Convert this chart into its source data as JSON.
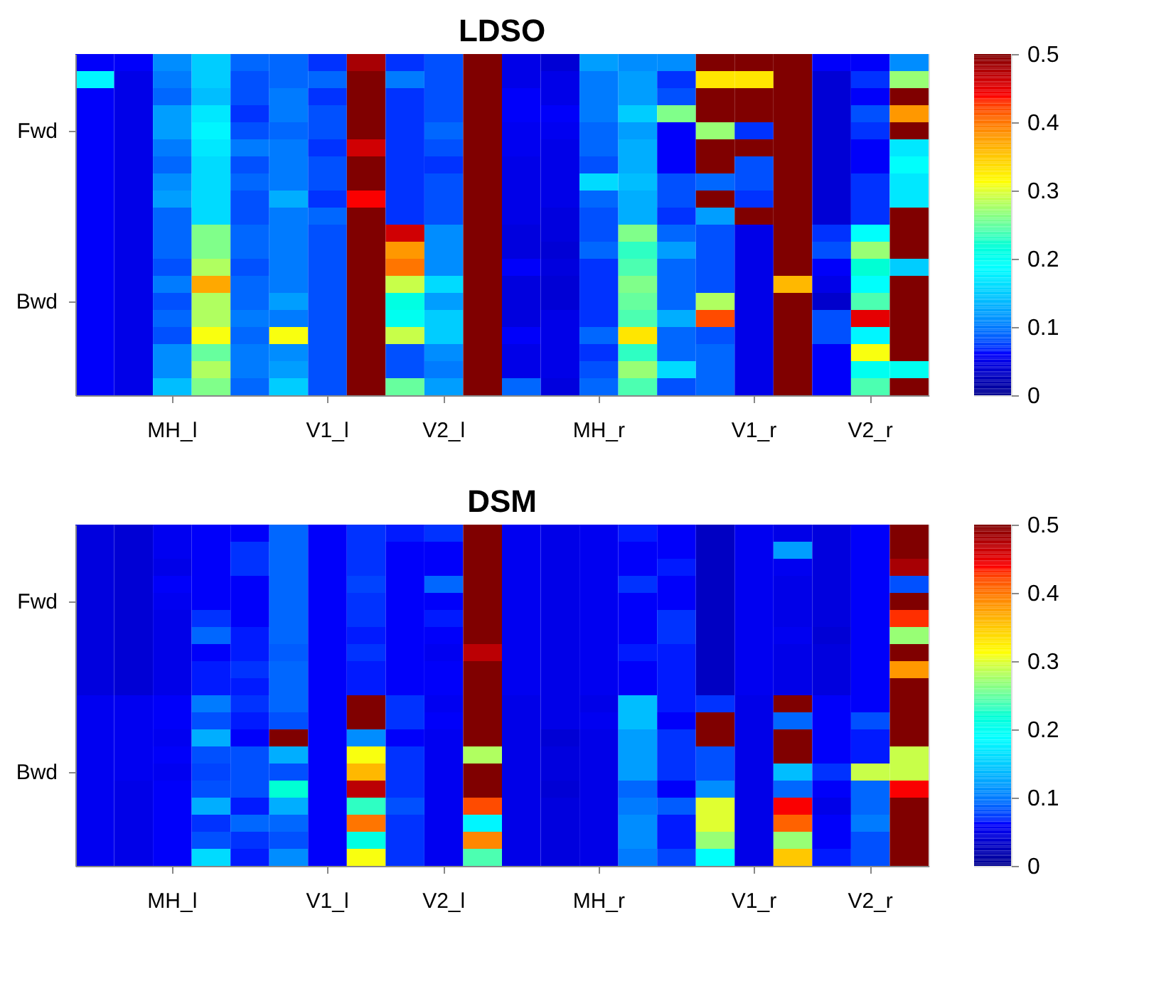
{
  "chart_data": [
    {
      "type": "heatmap",
      "title": "LDSO",
      "categories": [
        null,
        null,
        "MH_l",
        null,
        null,
        null,
        "V1_l",
        null,
        null,
        "V2_l",
        null,
        null,
        null,
        "MH_r",
        null,
        null,
        null,
        "V1_r",
        null,
        null,
        "V2_r",
        null
      ],
      "y_categories": [
        null,
        null,
        null,
        null,
        "Fwd",
        null,
        null,
        null,
        null,
        null,
        null,
        null,
        null,
        null,
        "Bwd",
        null,
        null,
        null,
        null,
        null
      ],
      "clim": [
        0,
        0.5
      ],
      "cticks": [
        0,
        0.1,
        0.2,
        0.3,
        0.4,
        0.5
      ],
      "cells": [
        [
          0.06,
          0.06,
          0.11,
          0.15,
          0.09,
          0.09,
          0.07,
          0.48,
          0.07,
          0.08,
          0.5,
          0.05,
          0.04,
          0.12,
          0.11,
          0.11,
          0.5,
          0.5,
          0.5,
          0.06,
          0.06,
          0.11
        ],
        [
          0.18,
          0.05,
          0.1,
          0.15,
          0.08,
          0.09,
          0.09,
          0.5,
          0.1,
          0.08,
          0.5,
          0.05,
          0.05,
          0.1,
          0.12,
          0.07,
          0.33,
          0.33,
          0.5,
          0.04,
          0.07,
          0.27
        ],
        [
          0.06,
          0.05,
          0.09,
          0.14,
          0.08,
          0.1,
          0.07,
          0.5,
          0.07,
          0.08,
          0.5,
          0.06,
          0.05,
          0.1,
          0.12,
          0.08,
          0.5,
          0.5,
          0.5,
          0.04,
          0.06,
          0.5
        ],
        [
          0.06,
          0.05,
          0.12,
          0.17,
          0.07,
          0.1,
          0.08,
          0.5,
          0.07,
          0.08,
          0.5,
          0.06,
          0.06,
          0.1,
          0.15,
          0.26,
          0.5,
          0.5,
          0.5,
          0.04,
          0.08,
          0.38
        ],
        [
          0.06,
          0.05,
          0.12,
          0.18,
          0.08,
          0.09,
          0.08,
          0.5,
          0.07,
          0.09,
          0.5,
          0.055,
          0.055,
          0.09,
          0.12,
          0.06,
          0.27,
          0.07,
          0.5,
          0.04,
          0.07,
          0.5
        ],
        [
          0.06,
          0.05,
          0.1,
          0.17,
          0.1,
          0.1,
          0.07,
          0.46,
          0.07,
          0.08,
          0.5,
          0.055,
          0.05,
          0.09,
          0.13,
          0.06,
          0.5,
          0.5,
          0.5,
          0.04,
          0.06,
          0.17
        ],
        [
          0.06,
          0.05,
          0.09,
          0.16,
          0.08,
          0.1,
          0.08,
          0.5,
          0.07,
          0.07,
          0.5,
          0.05,
          0.05,
          0.08,
          0.13,
          0.06,
          0.5,
          0.08,
          0.5,
          0.04,
          0.06,
          0.19
        ],
        [
          0.06,
          0.05,
          0.11,
          0.16,
          0.09,
          0.1,
          0.08,
          0.5,
          0.07,
          0.08,
          0.5,
          0.05,
          0.05,
          0.16,
          0.14,
          0.08,
          0.09,
          0.08,
          0.5,
          0.04,
          0.07,
          0.17
        ],
        [
          0.06,
          0.05,
          0.12,
          0.16,
          0.08,
          0.13,
          0.07,
          0.44,
          0.07,
          0.08,
          0.5,
          0.05,
          0.05,
          0.09,
          0.13,
          0.08,
          0.5,
          0.07,
          0.5,
          0.04,
          0.07,
          0.17
        ],
        [
          0.06,
          0.05,
          0.09,
          0.16,
          0.08,
          0.1,
          0.09,
          0.5,
          0.07,
          0.08,
          0.5,
          0.05,
          0.045,
          0.08,
          0.13,
          0.07,
          0.12,
          0.5,
          0.5,
          0.04,
          0.07,
          0.5
        ],
        [
          0.06,
          0.05,
          0.09,
          0.26,
          0.09,
          0.1,
          0.08,
          0.5,
          0.46,
          0.11,
          0.5,
          0.045,
          0.045,
          0.08,
          0.26,
          0.09,
          0.08,
          0.05,
          0.5,
          0.07,
          0.19,
          0.5
        ],
        [
          0.06,
          0.05,
          0.09,
          0.26,
          0.09,
          0.1,
          0.08,
          0.5,
          0.38,
          0.11,
          0.5,
          0.045,
          0.04,
          0.09,
          0.23,
          0.12,
          0.08,
          0.05,
          0.5,
          0.08,
          0.27,
          0.5
        ],
        [
          0.06,
          0.05,
          0.08,
          0.28,
          0.08,
          0.1,
          0.08,
          0.5,
          0.4,
          0.11,
          0.5,
          0.06,
          0.045,
          0.07,
          0.24,
          0.09,
          0.08,
          0.05,
          0.5,
          0.06,
          0.22,
          0.15
        ],
        [
          0.06,
          0.05,
          0.1,
          0.37,
          0.09,
          0.1,
          0.08,
          0.5,
          0.29,
          0.16,
          0.5,
          0.045,
          0.04,
          0.07,
          0.26,
          0.09,
          0.08,
          0.05,
          0.36,
          0.05,
          0.19,
          0.5
        ],
        [
          0.06,
          0.05,
          0.08,
          0.28,
          0.09,
          0.12,
          0.08,
          0.5,
          0.21,
          0.12,
          0.5,
          0.045,
          0.04,
          0.07,
          0.25,
          0.09,
          0.28,
          0.05,
          0.5,
          0.035,
          0.24,
          0.5
        ],
        [
          0.06,
          0.05,
          0.09,
          0.28,
          0.1,
          0.1,
          0.08,
          0.5,
          0.2,
          0.15,
          0.5,
          0.045,
          0.05,
          0.07,
          0.24,
          0.13,
          0.42,
          0.05,
          0.5,
          0.08,
          0.45,
          0.5
        ],
        [
          0.06,
          0.05,
          0.08,
          0.31,
          0.09,
          0.31,
          0.08,
          0.5,
          0.29,
          0.15,
          0.5,
          0.06,
          0.05,
          0.09,
          0.33,
          0.09,
          0.08,
          0.05,
          0.5,
          0.08,
          0.18,
          0.5
        ],
        [
          0.06,
          0.05,
          0.11,
          0.25,
          0.1,
          0.11,
          0.08,
          0.5,
          0.08,
          0.11,
          0.5,
          0.05,
          0.05,
          0.07,
          0.23,
          0.09,
          0.09,
          0.05,
          0.5,
          0.06,
          0.31,
          0.5
        ],
        [
          0.06,
          0.05,
          0.11,
          0.28,
          0.1,
          0.12,
          0.08,
          0.5,
          0.08,
          0.1,
          0.5,
          0.05,
          0.05,
          0.08,
          0.27,
          0.16,
          0.09,
          0.05,
          0.5,
          0.06,
          0.2,
          0.2
        ],
        [
          0.06,
          0.05,
          0.14,
          0.26,
          0.09,
          0.15,
          0.08,
          0.5,
          0.25,
          0.12,
          0.5,
          0.09,
          0.045,
          0.09,
          0.24,
          0.08,
          0.09,
          0.05,
          0.5,
          0.06,
          0.24,
          0.5
        ]
      ]
    },
    {
      "type": "heatmap",
      "title": "DSM",
      "categories": [
        null,
        null,
        "MH_l",
        null,
        null,
        null,
        "V1_l",
        null,
        null,
        "V2_l",
        null,
        null,
        null,
        "MH_r",
        null,
        null,
        null,
        "V1_r",
        null,
        null,
        "V2_r",
        null
      ],
      "y_categories": [
        null,
        null,
        null,
        null,
        "Fwd",
        null,
        null,
        null,
        null,
        null,
        null,
        null,
        null,
        null,
        "Bwd",
        null,
        null,
        null,
        null,
        null
      ],
      "clim": [
        0,
        0.5
      ],
      "cticks": [
        0,
        0.1,
        0.2,
        0.3,
        0.4,
        0.5
      ],
      "cells": [
        [
          0.045,
          0.04,
          0.055,
          0.06,
          0.06,
          0.09,
          0.06,
          0.07,
          0.065,
          0.07,
          0.5,
          0.055,
          0.05,
          0.055,
          0.065,
          0.06,
          0.03,
          0.055,
          0.05,
          0.045,
          0.06,
          0.5
        ],
        [
          0.045,
          0.04,
          0.055,
          0.06,
          0.07,
          0.09,
          0.06,
          0.07,
          0.06,
          0.06,
          0.5,
          0.055,
          0.05,
          0.055,
          0.06,
          0.06,
          0.03,
          0.055,
          0.12,
          0.045,
          0.06,
          0.5
        ],
        [
          0.045,
          0.04,
          0.05,
          0.06,
          0.07,
          0.09,
          0.06,
          0.07,
          0.06,
          0.06,
          0.5,
          0.055,
          0.05,
          0.055,
          0.06,
          0.065,
          0.03,
          0.055,
          0.055,
          0.045,
          0.06,
          0.48
        ],
        [
          0.045,
          0.04,
          0.06,
          0.06,
          0.06,
          0.09,
          0.06,
          0.075,
          0.06,
          0.09,
          0.5,
          0.055,
          0.05,
          0.055,
          0.07,
          0.06,
          0.03,
          0.055,
          0.05,
          0.045,
          0.06,
          0.08
        ],
        [
          0.045,
          0.04,
          0.055,
          0.06,
          0.06,
          0.09,
          0.06,
          0.07,
          0.06,
          0.06,
          0.5,
          0.055,
          0.05,
          0.055,
          0.06,
          0.06,
          0.03,
          0.055,
          0.05,
          0.045,
          0.06,
          0.5
        ],
        [
          0.045,
          0.04,
          0.05,
          0.07,
          0.06,
          0.09,
          0.06,
          0.07,
          0.06,
          0.065,
          0.5,
          0.055,
          0.05,
          0.055,
          0.06,
          0.07,
          0.03,
          0.055,
          0.05,
          0.045,
          0.06,
          0.43
        ],
        [
          0.045,
          0.04,
          0.05,
          0.09,
          0.065,
          0.09,
          0.06,
          0.065,
          0.06,
          0.06,
          0.5,
          0.055,
          0.05,
          0.055,
          0.06,
          0.07,
          0.03,
          0.055,
          0.055,
          0.04,
          0.06,
          0.27
        ],
        [
          0.045,
          0.04,
          0.05,
          0.06,
          0.065,
          0.085,
          0.06,
          0.07,
          0.06,
          0.055,
          0.47,
          0.055,
          0.05,
          0.055,
          0.065,
          0.065,
          0.03,
          0.055,
          0.05,
          0.045,
          0.06,
          0.5
        ],
        [
          0.045,
          0.04,
          0.05,
          0.065,
          0.07,
          0.09,
          0.06,
          0.065,
          0.06,
          0.06,
          0.5,
          0.055,
          0.05,
          0.055,
          0.06,
          0.065,
          0.03,
          0.055,
          0.05,
          0.045,
          0.06,
          0.38
        ],
        [
          0.045,
          0.04,
          0.05,
          0.065,
          0.065,
          0.09,
          0.06,
          0.065,
          0.06,
          0.06,
          0.5,
          0.055,
          0.05,
          0.055,
          0.06,
          0.065,
          0.03,
          0.055,
          0.05,
          0.045,
          0.06,
          0.5
        ],
        [
          0.055,
          0.055,
          0.06,
          0.1,
          0.07,
          0.09,
          0.06,
          0.5,
          0.07,
          0.055,
          0.5,
          0.05,
          0.05,
          0.05,
          0.14,
          0.065,
          0.07,
          0.05,
          0.5,
          0.06,
          0.06,
          0.5
        ],
        [
          0.055,
          0.055,
          0.06,
          0.08,
          0.065,
          0.08,
          0.06,
          0.5,
          0.07,
          0.06,
          0.5,
          0.05,
          0.05,
          0.055,
          0.14,
          0.06,
          0.5,
          0.05,
          0.09,
          0.06,
          0.08,
          0.5
        ],
        [
          0.055,
          0.055,
          0.055,
          0.13,
          0.06,
          0.5,
          0.06,
          0.11,
          0.06,
          0.055,
          0.5,
          0.05,
          0.04,
          0.05,
          0.12,
          0.07,
          0.5,
          0.05,
          0.5,
          0.06,
          0.065,
          0.5
        ],
        [
          0.055,
          0.055,
          0.06,
          0.08,
          0.08,
          0.13,
          0.06,
          0.31,
          0.07,
          0.055,
          0.28,
          0.05,
          0.045,
          0.05,
          0.12,
          0.07,
          0.08,
          0.05,
          0.5,
          0.06,
          0.065,
          0.29
        ],
        [
          0.055,
          0.055,
          0.055,
          0.075,
          0.08,
          0.08,
          0.06,
          0.36,
          0.07,
          0.055,
          0.5,
          0.05,
          0.045,
          0.05,
          0.12,
          0.07,
          0.08,
          0.05,
          0.14,
          0.07,
          0.29,
          0.29
        ],
        [
          0.055,
          0.05,
          0.06,
          0.08,
          0.08,
          0.22,
          0.06,
          0.47,
          0.07,
          0.055,
          0.5,
          0.05,
          0.04,
          0.05,
          0.09,
          0.06,
          0.11,
          0.05,
          0.09,
          0.06,
          0.09,
          0.44
        ],
        [
          0.055,
          0.05,
          0.06,
          0.13,
          0.065,
          0.13,
          0.06,
          0.23,
          0.08,
          0.055,
          0.42,
          0.05,
          0.045,
          0.05,
          0.1,
          0.085,
          0.3,
          0.05,
          0.44,
          0.05,
          0.09,
          0.5
        ],
        [
          0.055,
          0.05,
          0.06,
          0.07,
          0.09,
          0.09,
          0.06,
          0.4,
          0.07,
          0.055,
          0.18,
          0.05,
          0.045,
          0.05,
          0.11,
          0.065,
          0.3,
          0.05,
          0.41,
          0.06,
          0.1,
          0.5
        ],
        [
          0.055,
          0.05,
          0.06,
          0.08,
          0.07,
          0.08,
          0.06,
          0.21,
          0.07,
          0.055,
          0.39,
          0.05,
          0.045,
          0.05,
          0.11,
          0.065,
          0.27,
          0.05,
          0.27,
          0.06,
          0.08,
          0.5
        ],
        [
          0.055,
          0.05,
          0.06,
          0.16,
          0.065,
          0.11,
          0.06,
          0.31,
          0.07,
          0.055,
          0.24,
          0.05,
          0.045,
          0.05,
          0.1,
          0.075,
          0.19,
          0.05,
          0.35,
          0.065,
          0.08,
          0.5
        ]
      ]
    }
  ]
}
